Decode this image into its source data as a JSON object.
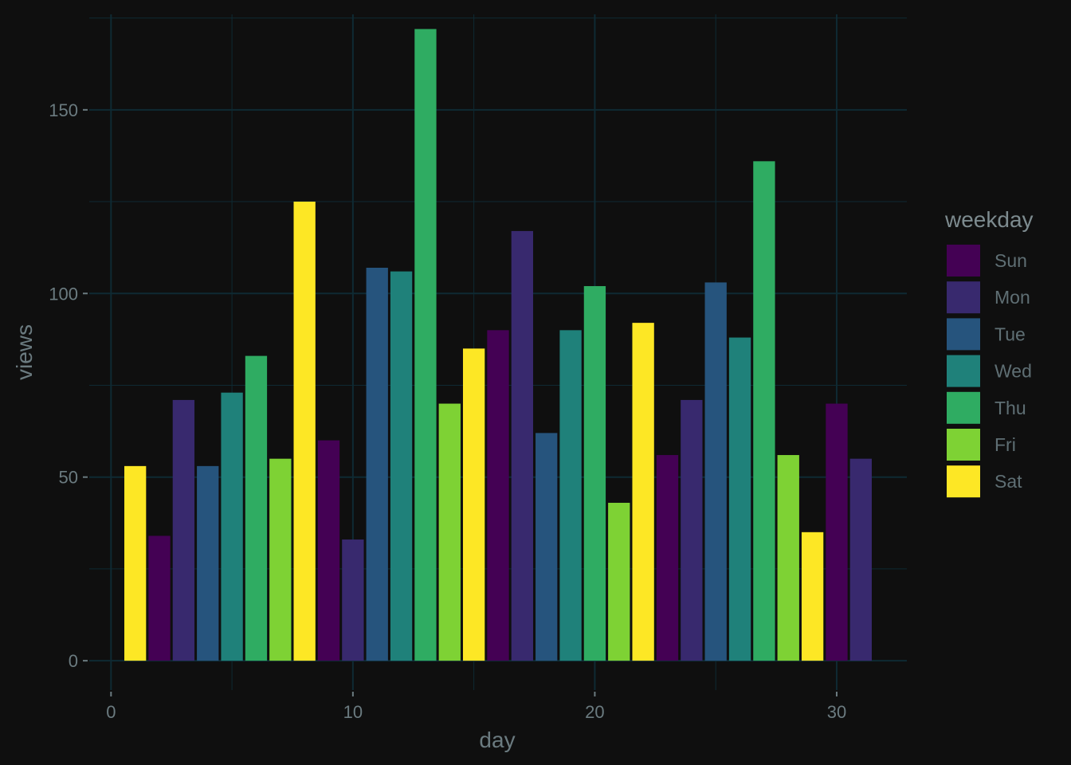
{
  "chart_data": {
    "type": "bar",
    "xlabel": "day",
    "ylabel": "views",
    "xlim": [
      -0.9,
      32.9
    ],
    "ylim": [
      -8,
      176
    ],
    "x_ticks": [
      0,
      10,
      20,
      30
    ],
    "y_ticks": [
      0,
      50,
      100,
      150
    ],
    "grid": true,
    "legend": {
      "title": "weekday",
      "placement": "right",
      "entries": [
        {
          "label": "Sun",
          "color": "#440154"
        },
        {
          "label": "Mon",
          "color": "#38296e"
        },
        {
          "label": "Tue",
          "color": "#26547d"
        },
        {
          "label": "Wed",
          "color": "#1f817a"
        },
        {
          "label": "Thu",
          "color": "#2fac62"
        },
        {
          "label": "Fri",
          "color": "#7ed234"
        },
        {
          "label": "Sat",
          "color": "#fde725"
        }
      ]
    },
    "bars": [
      {
        "day": 1,
        "views": 53,
        "weekday": "Sat"
      },
      {
        "day": 2,
        "views": 34,
        "weekday": "Sun"
      },
      {
        "day": 3,
        "views": 71,
        "weekday": "Mon"
      },
      {
        "day": 4,
        "views": 53,
        "weekday": "Tue"
      },
      {
        "day": 5,
        "views": 73,
        "weekday": "Wed"
      },
      {
        "day": 6,
        "views": 83,
        "weekday": "Thu"
      },
      {
        "day": 7,
        "views": 55,
        "weekday": "Fri"
      },
      {
        "day": 8,
        "views": 125,
        "weekday": "Sat"
      },
      {
        "day": 9,
        "views": 60,
        "weekday": "Sun"
      },
      {
        "day": 10,
        "views": 33,
        "weekday": "Mon"
      },
      {
        "day": 11,
        "views": 107,
        "weekday": "Tue"
      },
      {
        "day": 12,
        "views": 106,
        "weekday": "Wed"
      },
      {
        "day": 13,
        "views": 172,
        "weekday": "Thu"
      },
      {
        "day": 14,
        "views": 70,
        "weekday": "Fri"
      },
      {
        "day": 15,
        "views": 85,
        "weekday": "Sat"
      },
      {
        "day": 16,
        "views": 90,
        "weekday": "Sun"
      },
      {
        "day": 17,
        "views": 117,
        "weekday": "Mon"
      },
      {
        "day": 18,
        "views": 62,
        "weekday": "Tue"
      },
      {
        "day": 19,
        "views": 90,
        "weekday": "Wed"
      },
      {
        "day": 20,
        "views": 102,
        "weekday": "Thu"
      },
      {
        "day": 21,
        "views": 43,
        "weekday": "Fri"
      },
      {
        "day": 22,
        "views": 92,
        "weekday": "Sat"
      },
      {
        "day": 23,
        "views": 56,
        "weekday": "Sun"
      },
      {
        "day": 24,
        "views": 71,
        "weekday": "Mon"
      },
      {
        "day": 25,
        "views": 103,
        "weekday": "Tue"
      },
      {
        "day": 26,
        "views": 88,
        "weekday": "Wed"
      },
      {
        "day": 27,
        "views": 136,
        "weekday": "Thu"
      },
      {
        "day": 28,
        "views": 56,
        "weekday": "Fri"
      },
      {
        "day": 29,
        "views": 35,
        "weekday": "Sat"
      },
      {
        "day": 30,
        "views": 70,
        "weekday": "Sun"
      },
      {
        "day": 31,
        "views": 55,
        "weekday": "Mon"
      }
    ],
    "colors": {
      "background": "#0f0f0f",
      "grid": "#0f2a33",
      "text": "#6b7b80"
    }
  }
}
